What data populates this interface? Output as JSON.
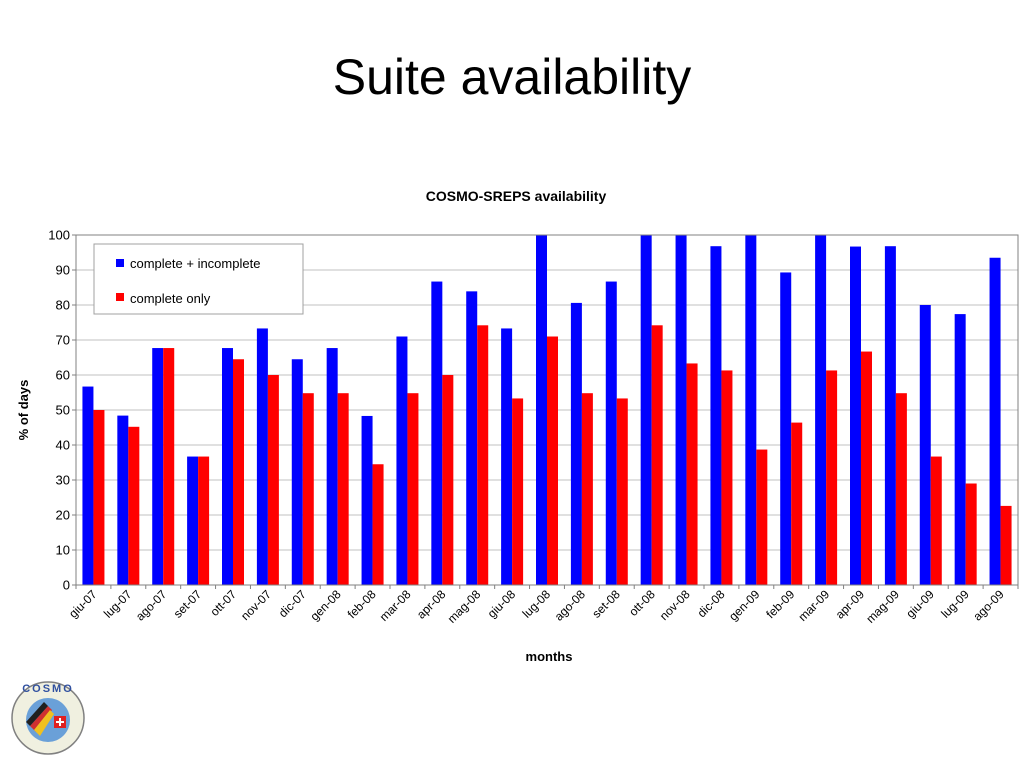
{
  "slide": {
    "title": "Suite availability"
  },
  "logo": {
    "text": "COSMO"
  },
  "colors": {
    "series1": "#0000ff",
    "series2": "#ff0000",
    "grid": "#c0c0c0"
  },
  "chart_data": {
    "type": "bar",
    "title": "COSMO-SREPS availability",
    "xlabel": "months",
    "ylabel": "% of days",
    "ylim": [
      0,
      100
    ],
    "yticks": [
      0,
      10,
      20,
      30,
      40,
      50,
      60,
      70,
      80,
      90,
      100
    ],
    "grid": true,
    "legend": "top-left",
    "categories": [
      "giu-07",
      "lug-07",
      "ago-07",
      "set-07",
      "ott-07",
      "nov-07",
      "dic-07",
      "gen-08",
      "feb-08",
      "mar-08",
      "apr-08",
      "mag-08",
      "giu-08",
      "lug-08",
      "ago-08",
      "set-08",
      "ott-08",
      "nov-08",
      "dic-08",
      "gen-09",
      "feb-09",
      "mar-09",
      "apr-09",
      "mag-09",
      "giu-09",
      "lug-09",
      "ago-09"
    ],
    "series": [
      {
        "name": "complete + incomplete",
        "color": "#0000ff",
        "values": [
          56.7,
          48.4,
          67.7,
          36.7,
          67.7,
          73.3,
          64.5,
          67.7,
          48.3,
          71.0,
          86.7,
          83.9,
          73.3,
          100,
          80.6,
          86.7,
          100,
          100,
          96.8,
          100,
          89.3,
          100,
          96.7,
          96.8,
          80.0,
          77.4,
          93.5
        ]
      },
      {
        "name": "complete only",
        "color": "#ff0000",
        "values": [
          50.0,
          45.2,
          67.7,
          36.7,
          64.5,
          60.0,
          54.8,
          54.8,
          34.5,
          54.8,
          60.0,
          74.2,
          53.3,
          71.0,
          54.8,
          53.3,
          74.2,
          63.3,
          61.3,
          38.7,
          46.4,
          61.3,
          66.7,
          54.8,
          36.7,
          29.0,
          22.6
        ]
      }
    ]
  }
}
